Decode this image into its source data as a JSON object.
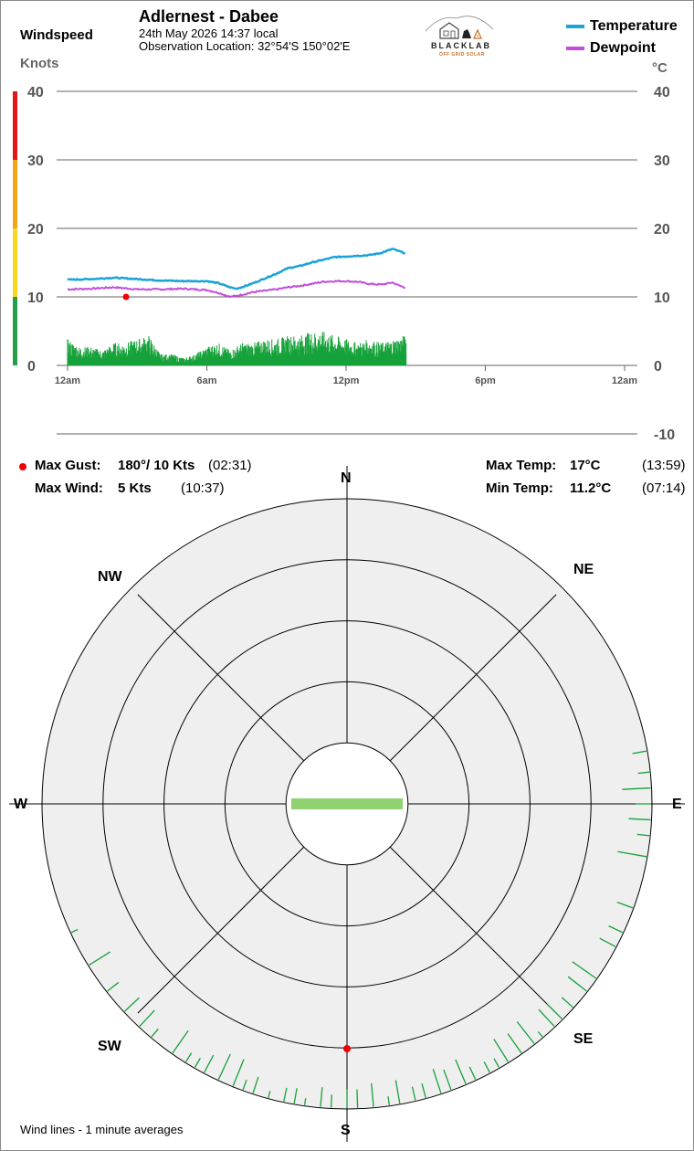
{
  "header": {
    "windspeed_label": "Windspeed",
    "knots_label": "Knots",
    "station_name": "Adlernest - Dabee",
    "date_time": "24th May 2026  14:37 local",
    "observation_location": "Observation Location: 32°54'S 150°02'E",
    "celsius_label": "°C"
  },
  "logo": {
    "name": "BLACKLAB",
    "tagline": "OFF GRID SOLAR"
  },
  "legend": {
    "temperature": "Temperature",
    "dewpoint": "Dewpoint"
  },
  "colors": {
    "temperature": "#1aa3d9",
    "dewpoint": "#c04ddc",
    "wind": "#16a23a",
    "gust_marker": "#ee0000",
    "scale_red": "#e21818",
    "scale_orange": "#f2a51a",
    "scale_yellow": "#f7d81f",
    "scale_green": "#23a045",
    "rose_fill": "#efefef",
    "rose_current": "#8fd26f"
  },
  "stats": {
    "max_gust_label": "Max Gust:",
    "max_gust_value": "180°/  10 Kts",
    "max_gust_time": "(02:31)",
    "max_wind_label": "Max Wind:",
    "max_wind_value": "5 Kts",
    "max_wind_time": "(10:37)",
    "max_temp_label": "Max Temp:",
    "max_temp_value": "17°C",
    "max_temp_time": "(13:59)",
    "min_temp_label": "Min Temp:",
    "min_temp_value": "11.2°C",
    "min_temp_time": "(07:14)"
  },
  "compass": {
    "N": "N",
    "NE": "NE",
    "E": "E",
    "SE": "SE",
    "S": "S",
    "SW": "SW",
    "W": "W",
    "NW": "NW"
  },
  "footer_note": "Wind lines - 1 minute averages",
  "chart_data": [
    {
      "type": "line",
      "x_ticks": [
        "12am",
        "6am",
        "12pm",
        "6pm",
        "12am"
      ],
      "x_tick_hours": [
        0,
        6,
        12,
        18,
        24
      ],
      "y_left_ticks": [
        "40",
        "30",
        "20",
        "10",
        "0"
      ],
      "y_right_ticks": [
        "40",
        "30",
        "20",
        "10",
        "0",
        "-10"
      ],
      "left_axis_range": [
        0,
        40
      ],
      "right_axis_range": [
        -10,
        40
      ],
      "grid": true,
      "series": [
        {
          "name": "Temperature",
          "axis": "right",
          "x_hours": [
            0,
            1,
            2,
            3,
            4,
            5,
            6,
            6.5,
            7,
            7.25,
            7.5,
            8,
            9,
            9.5,
            10,
            10.5,
            11,
            11.5,
            12,
            12.5,
            13,
            13.5,
            14,
            14.25,
            14.6
          ],
          "values": [
            12.5,
            12.6,
            12.8,
            12.6,
            12.4,
            12.3,
            12.3,
            12.0,
            11.4,
            11.2,
            11.4,
            12.0,
            13.4,
            14.2,
            14.5,
            15.0,
            15.4,
            15.8,
            15.9,
            16.0,
            16.1,
            16.4,
            17.0,
            16.7,
            16.3
          ]
        },
        {
          "name": "Dewpoint",
          "axis": "right",
          "x_hours": [
            0,
            1,
            2,
            3,
            4,
            5,
            6,
            6.5,
            7,
            7.5,
            8,
            9,
            9.5,
            10,
            10.5,
            11,
            11.5,
            12,
            12.5,
            13,
            13.5,
            14,
            14.25,
            14.6
          ],
          "values": [
            11.1,
            11.2,
            11.4,
            11.1,
            11.1,
            11.2,
            11.0,
            10.6,
            10.0,
            10.3,
            10.7,
            11.1,
            11.4,
            11.6,
            11.9,
            12.2,
            12.3,
            12.3,
            12.2,
            11.9,
            11.8,
            12.1,
            11.7,
            11.3
          ]
        },
        {
          "name": "Wind",
          "type": "bar",
          "axis": "left",
          "x_hours": [
            0,
            0.5,
            1,
            1.5,
            2,
            2.5,
            3,
            3.5,
            4,
            4.5,
            5,
            5.5,
            6,
            6.5,
            7,
            7.5,
            8,
            8.5,
            9,
            9.5,
            10,
            10.5,
            11,
            11.5,
            12,
            12.5,
            13,
            13.5,
            14,
            14.5
          ],
          "values": [
            3.5,
            2.5,
            2.5,
            2.0,
            3.0,
            3.0,
            3.5,
            4.0,
            1.5,
            1.5,
            1.0,
            1.5,
            2.5,
            3.0,
            2.0,
            3.0,
            3.0,
            3.5,
            3.5,
            4.0,
            4.0,
            4.5,
            4.5,
            4.0,
            3.5,
            3.0,
            3.5,
            3.0,
            3.5,
            4.0
          ]
        }
      ],
      "gust_marker": {
        "x_hours": 2.52,
        "value": 10
      }
    },
    {
      "type": "scatter",
      "chart": "wind rose",
      "directions": [
        "N",
        "NE",
        "E",
        "SE",
        "S",
        "SW",
        "W",
        "NW"
      ],
      "ring_count": 5,
      "current_direction_deg": 90,
      "wind_line_directions_deg": [
        80,
        84,
        87,
        90,
        93,
        96,
        100,
        110,
        115,
        118,
        125,
        128,
        132,
        135,
        137,
        140,
        142,
        145,
        148,
        150,
        152,
        155,
        157,
        160,
        162,
        165,
        167,
        170,
        172,
        175,
        178,
        180,
        183,
        185,
        188,
        190,
        192,
        195,
        198,
        200,
        202,
        205,
        208,
        210,
        212,
        215,
        220,
        223,
        227,
        232,
        238,
        245
      ],
      "gust_direction_deg": 180
    }
  ]
}
